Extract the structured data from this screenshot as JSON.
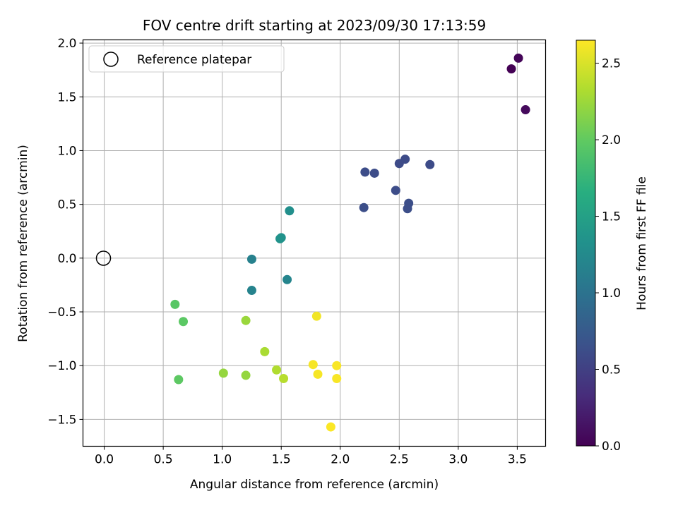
{
  "chart_data": {
    "type": "scatter",
    "title": "FOV centre drift starting at 2023/09/30 17:13:59",
    "xlabel": "Angular distance from reference (arcmin)",
    "ylabel": "Rotation from reference (arcmin)",
    "xlim": [
      -0.18,
      3.74
    ],
    "ylim": [
      -1.75,
      2.03
    ],
    "xticks": [
      0.0,
      0.5,
      1.0,
      1.5,
      2.0,
      2.5,
      3.0,
      3.5
    ],
    "xtick_labels": [
      "0.0",
      "0.5",
      "1.0",
      "1.5",
      "2.0",
      "2.5",
      "3.0",
      "3.5"
    ],
    "yticks": [
      -1.5,
      -1.0,
      -0.5,
      0.0,
      0.5,
      1.0,
      1.5,
      2.0
    ],
    "ytick_labels": [
      "−1.5",
      "−1.0",
      "−0.5",
      "0.0",
      "0.5",
      "1.0",
      "1.5",
      "2.0"
    ],
    "grid": true,
    "legend": {
      "placement": "top-left",
      "entries": [
        "Reference platepar"
      ]
    },
    "reference_point": {
      "x": 0.0,
      "y": 0.0,
      "label": "Reference platepar"
    },
    "colorbar": {
      "label": "Hours from first FF file",
      "colormap": "viridis",
      "range": [
        0.0,
        2.65
      ],
      "ticks": [
        0.0,
        0.5,
        1.0,
        1.5,
        2.0,
        2.5
      ],
      "tick_labels": [
        "0.0",
        "0.5",
        "1.0",
        "1.5",
        "2.0",
        "2.5"
      ]
    },
    "points": [
      {
        "x": 3.45,
        "y": 1.76,
        "hours": 0.0
      },
      {
        "x": 3.51,
        "y": 1.86,
        "hours": 0.03
      },
      {
        "x": 3.57,
        "y": 1.38,
        "hours": 0.07
      },
      {
        "x": 2.76,
        "y": 0.87,
        "hours": 0.6
      },
      {
        "x": 2.55,
        "y": 0.92,
        "hours": 0.6
      },
      {
        "x": 2.5,
        "y": 0.88,
        "hours": 0.6
      },
      {
        "x": 2.21,
        "y": 0.8,
        "hours": 0.62
      },
      {
        "x": 2.29,
        "y": 0.79,
        "hours": 0.62
      },
      {
        "x": 2.47,
        "y": 0.63,
        "hours": 0.62
      },
      {
        "x": 2.58,
        "y": 0.51,
        "hours": 0.63
      },
      {
        "x": 2.57,
        "y": 0.46,
        "hours": 0.63
      },
      {
        "x": 2.2,
        "y": 0.47,
        "hours": 0.63
      },
      {
        "x": 1.57,
        "y": 0.44,
        "hours": 1.3
      },
      {
        "x": 1.5,
        "y": 0.19,
        "hours": 1.33
      },
      {
        "x": 1.49,
        "y": 0.18,
        "hours": 1.35
      },
      {
        "x": 1.25,
        "y": -0.01,
        "hours": 1.15
      },
      {
        "x": 1.25,
        "y": -0.3,
        "hours": 1.18
      },
      {
        "x": 1.55,
        "y": -0.2,
        "hours": 1.2
      },
      {
        "x": 0.6,
        "y": -0.43,
        "hours": 1.95
      },
      {
        "x": 0.67,
        "y": -0.59,
        "hours": 1.97
      },
      {
        "x": 0.63,
        "y": -1.13,
        "hours": 1.98
      },
      {
        "x": 1.01,
        "y": -1.07,
        "hours": 2.22
      },
      {
        "x": 1.2,
        "y": -1.09,
        "hours": 2.22
      },
      {
        "x": 1.2,
        "y": -0.58,
        "hours": 2.24
      },
      {
        "x": 1.36,
        "y": -0.87,
        "hours": 2.3
      },
      {
        "x": 1.46,
        "y": -1.04,
        "hours": 2.33
      },
      {
        "x": 1.52,
        "y": -1.12,
        "hours": 2.36
      },
      {
        "x": 1.8,
        "y": -0.54,
        "hours": 2.6
      },
      {
        "x": 1.77,
        "y": -0.99,
        "hours": 2.62
      },
      {
        "x": 1.81,
        "y": -1.08,
        "hours": 2.62
      },
      {
        "x": 1.97,
        "y": -1.0,
        "hours": 2.63
      },
      {
        "x": 1.97,
        "y": -1.12,
        "hours": 2.63
      },
      {
        "x": 1.92,
        "y": -1.57,
        "hours": 2.64
      }
    ]
  }
}
